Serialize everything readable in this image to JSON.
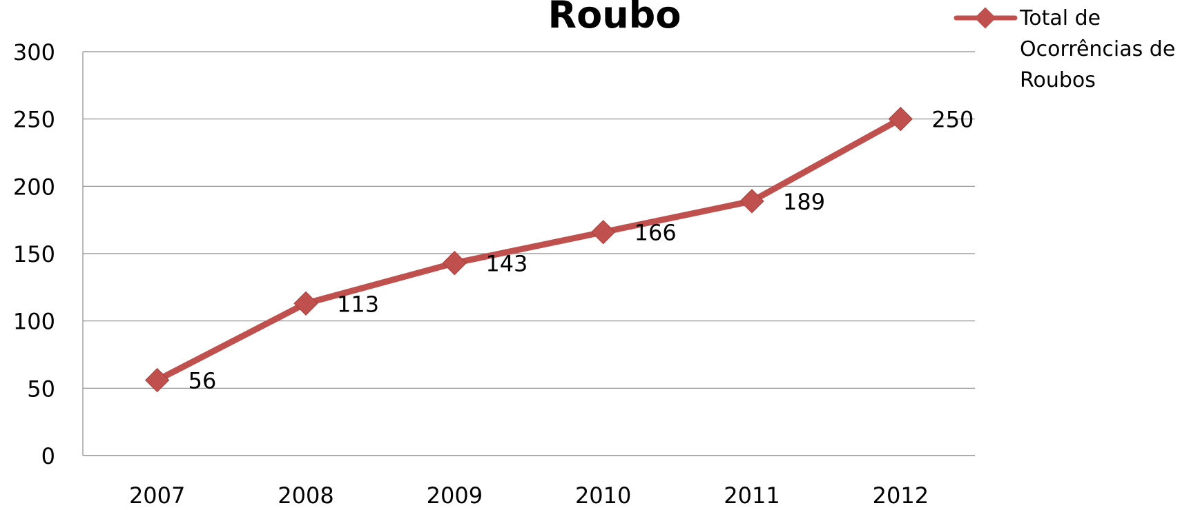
{
  "chart_data": {
    "type": "line",
    "title": "Roubo",
    "xlabel": "",
    "ylabel": "",
    "categories": [
      "2007",
      "2008",
      "2009",
      "2010",
      "2011",
      "2012"
    ],
    "series": [
      {
        "name": "Total de Ocorrências de Roubos",
        "values": [
          56,
          113,
          143,
          166,
          189,
          250
        ],
        "color": "#C0504D",
        "marker": "diamond"
      }
    ],
    "ylim": [
      0,
      300
    ],
    "yticks": [
      0,
      50,
      100,
      150,
      200,
      250,
      300
    ],
    "grid": "horizontal",
    "legend_position": "top-right",
    "data_labels": true
  },
  "legend": {
    "lines": [
      "Total de",
      "Ocorrências de",
      "Roubos"
    ]
  }
}
